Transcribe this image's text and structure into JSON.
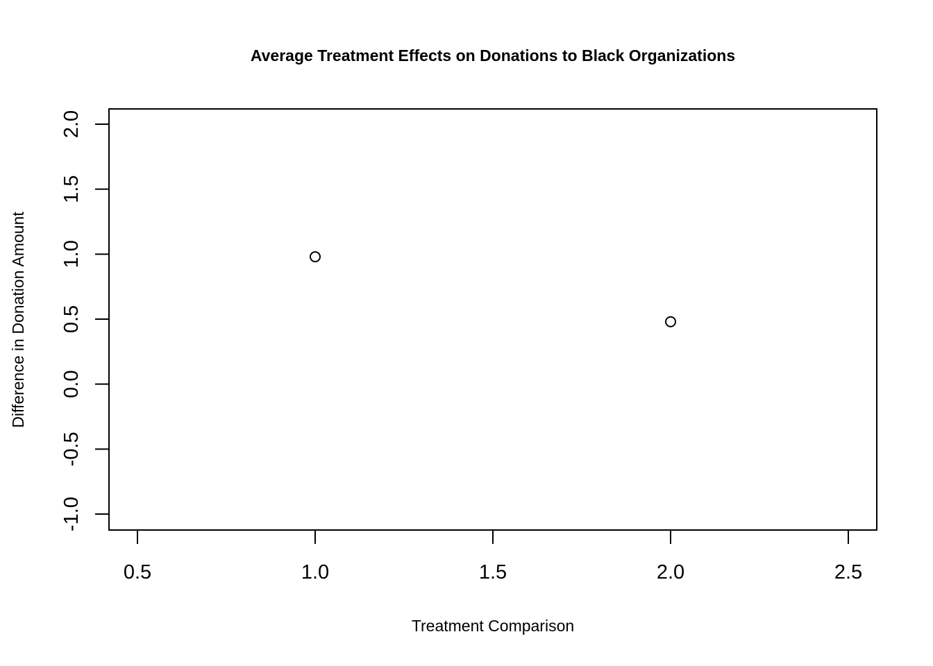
{
  "chart_data": {
    "type": "scatter",
    "title": "Average Treatment Effects on Donations to Black Organizations",
    "xlabel": "Treatment Comparison",
    "ylabel": "Difference in Donation Amount",
    "xlim": [
      0.5,
      2.5
    ],
    "ylim": [
      -1.0,
      2.0
    ],
    "x_ticks": [
      0.5,
      1.0,
      1.5,
      2.0,
      2.5
    ],
    "x_tick_labels": [
      "0.5",
      "1.0",
      "1.5",
      "2.0",
      "2.5"
    ],
    "y_ticks": [
      -1.0,
      -0.5,
      0.0,
      0.5,
      1.0,
      1.5,
      2.0
    ],
    "y_tick_labels": [
      "-1.0",
      "-0.5",
      "0.0",
      "0.5",
      "1.0",
      "1.5",
      "2.0"
    ],
    "points": [
      {
        "x": 1.0,
        "y": 0.98
      },
      {
        "x": 2.0,
        "y": 0.48
      }
    ],
    "grid": false,
    "marker": "open-circle",
    "colors": {
      "axis": "#000000",
      "points": "#000000",
      "background": "#ffffff"
    }
  }
}
